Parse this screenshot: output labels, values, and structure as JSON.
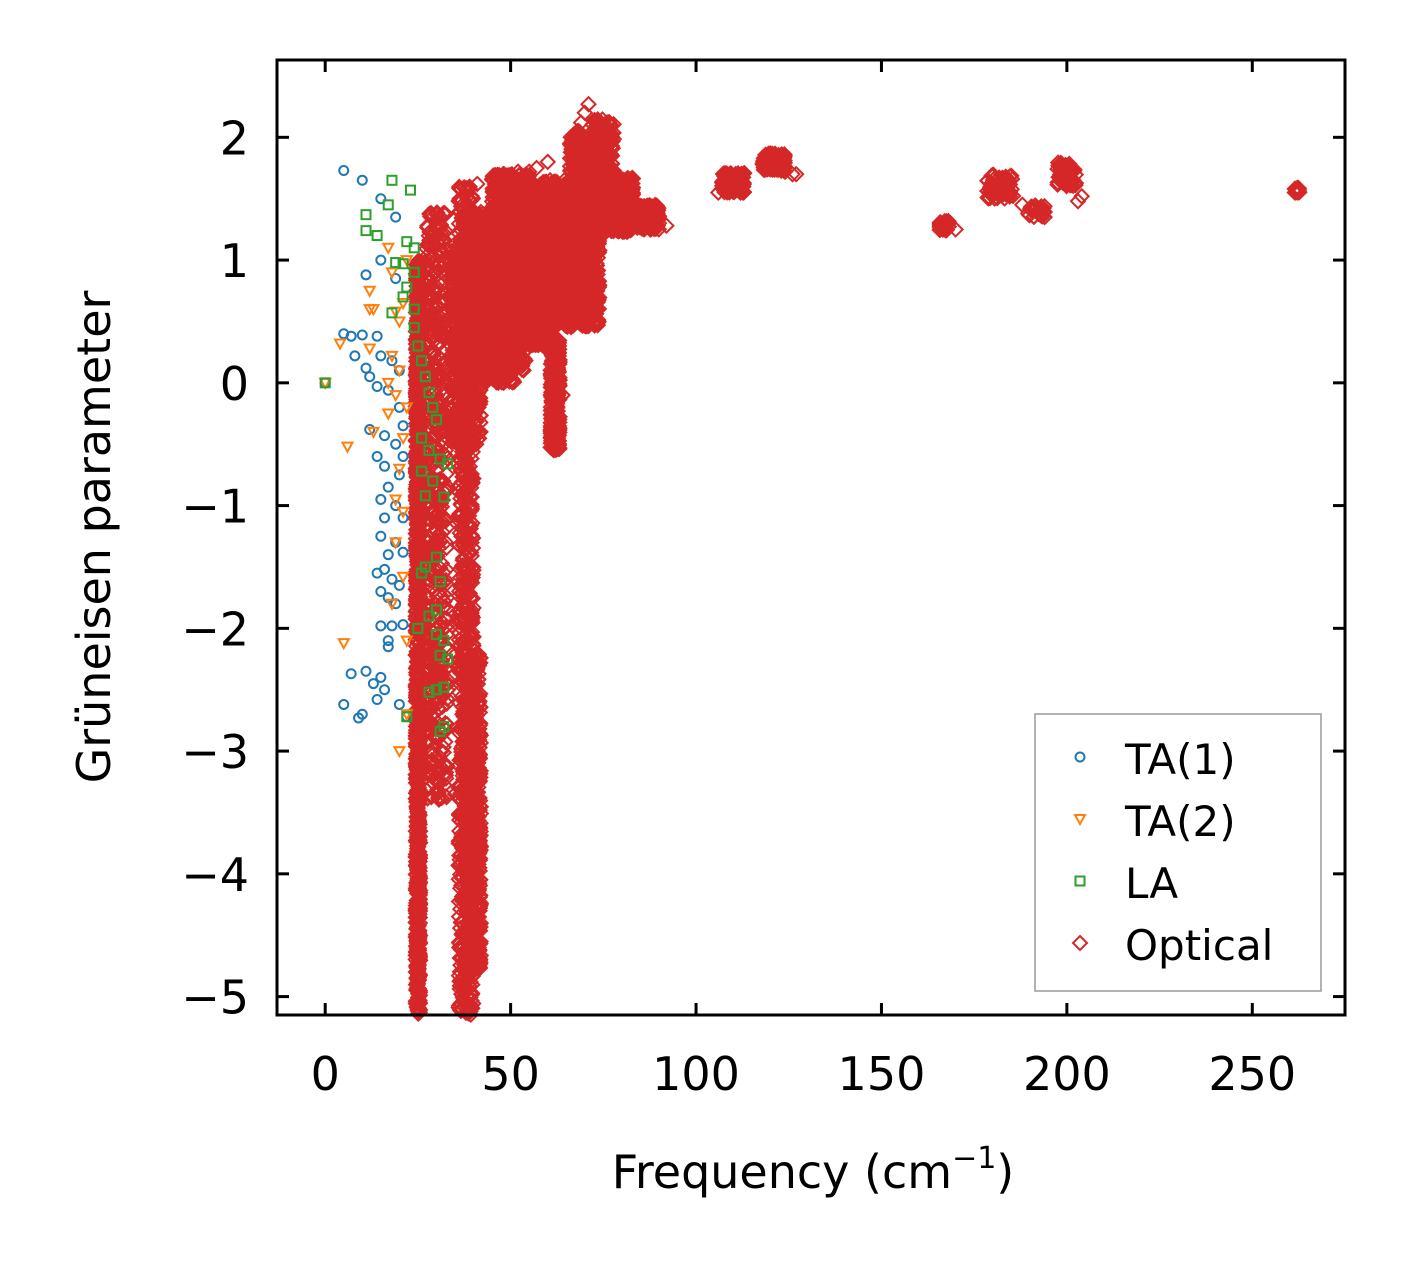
{
  "chart_data": {
    "type": "scatter",
    "title": "",
    "xlabel": "Frequency (cm",
    "xlabel_sup": "−1",
    "xlabel_close": ")",
    "ylabel": "Grüneisen parameter",
    "xlim": [
      -13,
      275
    ],
    "ylim": [
      -5.15,
      2.63
    ],
    "xticks": [
      0,
      50,
      100,
      150,
      200,
      250
    ],
    "xtick_labels": [
      "0",
      "50",
      "100",
      "150",
      "200",
      "250"
    ],
    "yticks": [
      2,
      1,
      0,
      -1,
      -2,
      -3,
      -4,
      -5
    ],
    "ytick_labels": [
      "2",
      "1",
      "0",
      "−1",
      "−2",
      "−3",
      "−4",
      "−5"
    ],
    "grid": false,
    "legend_position": "bottom-right",
    "series": [
      {
        "name": "TA(1)",
        "marker": "circle",
        "color": "#1f77b4",
        "points": [
          [
            0,
            0
          ],
          [
            5,
            1.73
          ],
          [
            10,
            1.65
          ],
          [
            15,
            1.5
          ],
          [
            19,
            1.35
          ],
          [
            15,
            1.0
          ],
          [
            11,
            0.88
          ],
          [
            19,
            0.85
          ],
          [
            5,
            0.4
          ],
          [
            7,
            0.38
          ],
          [
            10,
            0.39
          ],
          [
            14,
            0.38
          ],
          [
            8,
            0.22
          ],
          [
            11,
            0.12
          ],
          [
            15,
            0.22
          ],
          [
            18,
            0.18
          ],
          [
            12,
            0.05
          ],
          [
            20,
            0.1
          ],
          [
            14,
            -0.03
          ],
          [
            17,
            -0.06
          ],
          [
            20,
            -0.2
          ],
          [
            21,
            -0.35
          ],
          [
            12,
            -0.38
          ],
          [
            16,
            -0.43
          ],
          [
            19,
            -0.5
          ],
          [
            21,
            -0.6
          ],
          [
            14,
            -0.6
          ],
          [
            16,
            -0.68
          ],
          [
            20,
            -0.75
          ],
          [
            17,
            -0.85
          ],
          [
            15,
            -0.95
          ],
          [
            19,
            -1.0
          ],
          [
            21,
            -1.1
          ],
          [
            16,
            -1.1
          ],
          [
            15,
            -1.25
          ],
          [
            19,
            -1.3
          ],
          [
            21,
            -1.38
          ],
          [
            17,
            -1.4
          ],
          [
            16,
            -1.52
          ],
          [
            14,
            -1.55
          ],
          [
            18,
            -1.6
          ],
          [
            20,
            -1.65
          ],
          [
            15,
            -1.7
          ],
          [
            17,
            -1.75
          ],
          [
            19,
            -1.8
          ],
          [
            15,
            -1.98
          ],
          [
            18,
            -1.98
          ],
          [
            21,
            -1.97
          ],
          [
            17,
            -2.1
          ],
          [
            17,
            -2.15
          ],
          [
            11,
            -2.35
          ],
          [
            7,
            -2.37
          ],
          [
            15,
            -2.4
          ],
          [
            13,
            -2.45
          ],
          [
            16,
            -2.5
          ],
          [
            14,
            -2.58
          ],
          [
            5,
            -2.62
          ],
          [
            10,
            -2.7
          ],
          [
            9,
            -2.73
          ],
          [
            20,
            -2.62
          ],
          [
            22,
            -2.72
          ]
        ]
      },
      {
        "name": "TA(2)",
        "marker": "triangle-down",
        "color": "#ff7f0e",
        "points": [
          [
            0,
            0
          ],
          [
            17,
            1.1
          ],
          [
            22,
            1.0
          ],
          [
            18,
            0.9
          ],
          [
            12,
            0.75
          ],
          [
            21,
            0.65
          ],
          [
            12,
            0.6
          ],
          [
            13,
            0.6
          ],
          [
            19,
            0.58
          ],
          [
            20,
            0.5
          ],
          [
            4,
            0.32
          ],
          [
            12,
            0.28
          ],
          [
            18,
            0.22
          ],
          [
            20,
            0.1
          ],
          [
            17,
            0.0
          ],
          [
            19,
            -0.1
          ],
          [
            22,
            -0.2
          ],
          [
            17,
            -0.25
          ],
          [
            13,
            -0.4
          ],
          [
            21,
            -0.45
          ],
          [
            6,
            -0.52
          ],
          [
            20,
            -0.7
          ],
          [
            19,
            -0.95
          ],
          [
            21,
            -1.05
          ],
          [
            19,
            -1.3
          ],
          [
            21,
            -1.58
          ],
          [
            18,
            -1.8
          ],
          [
            5,
            -2.12
          ],
          [
            22,
            -2.1
          ],
          [
            22,
            -2.7
          ],
          [
            20,
            -3.0
          ]
        ]
      },
      {
        "name": "LA",
        "marker": "square",
        "color": "#2ca02c",
        "points": [
          [
            0,
            0
          ],
          [
            18,
            1.65
          ],
          [
            23,
            1.57
          ],
          [
            17,
            1.45
          ],
          [
            11,
            1.37
          ],
          [
            11,
            1.24
          ],
          [
            14,
            1.2
          ],
          [
            22,
            1.15
          ],
          [
            24,
            1.1
          ],
          [
            19,
            0.98
          ],
          [
            21,
            0.97
          ],
          [
            24,
            0.9
          ],
          [
            22,
            0.78
          ],
          [
            21,
            0.7
          ],
          [
            24,
            0.6
          ],
          [
            18,
            0.57
          ],
          [
            24,
            0.45
          ],
          [
            25,
            0.3
          ],
          [
            26,
            0.18
          ],
          [
            27,
            0.05
          ],
          [
            28,
            -0.08
          ],
          [
            29,
            -0.2
          ],
          [
            30,
            -0.3
          ],
          [
            26,
            -0.45
          ],
          [
            28,
            -0.55
          ],
          [
            31,
            -0.62
          ],
          [
            33,
            -0.66
          ],
          [
            26,
            -0.72
          ],
          [
            29,
            -0.8
          ],
          [
            27,
            -0.92
          ],
          [
            32,
            -0.93
          ],
          [
            30,
            -1.42
          ],
          [
            27,
            -1.5
          ],
          [
            26,
            -1.55
          ],
          [
            31,
            -1.62
          ],
          [
            30,
            -1.85
          ],
          [
            28,
            -1.9
          ],
          [
            25,
            -2.0
          ],
          [
            30,
            -2.05
          ],
          [
            32,
            -2.1
          ],
          [
            31,
            -2.22
          ],
          [
            33,
            -2.25
          ],
          [
            32,
            -2.48
          ],
          [
            30,
            -2.5
          ],
          [
            28,
            -2.52
          ],
          [
            22,
            -2.72
          ],
          [
            32,
            -2.8
          ],
          [
            31,
            -2.84
          ]
        ]
      },
      {
        "name": "Optical",
        "marker": "diamond",
        "color": "#d62728",
        "clusters": [
          [
            [
              25,
              -2.9
            ],
            [
              0.6,
              3.9
            ],
            1400
          ],
          [
            [
              30,
              -1.0
            ],
            [
              3,
              2.4
            ],
            600
          ],
          [
            [
              38,
              -2.0
            ],
            [
              2,
              3.6
            ],
            900
          ],
          [
            [
              40,
              -3.5
            ],
            [
              2,
              1.3
            ],
            700
          ],
          [
            [
              38,
              0.3
            ],
            [
              4,
              0.8
            ],
            600
          ],
          [
            [
              45,
              0.7
            ],
            [
              6,
              0.7
            ],
            1100
          ],
          [
            [
              55,
              0.9
            ],
            [
              6,
              0.6
            ],
            1300
          ],
          [
            [
              50,
              1.35
            ],
            [
              5,
              0.35
            ],
            600
          ],
          [
            [
              62,
              1.05
            ],
            [
              5,
              0.6
            ],
            1000
          ],
          [
            [
              70,
              1.25
            ],
            [
              4,
              0.8
            ],
            700
          ],
          [
            [
              78,
              1.45
            ],
            [
              5,
              0.22
            ],
            600
          ],
          [
            [
              62,
              -0.1
            ],
            [
              1.2,
              0.45
            ],
            350
          ],
          [
            [
              48,
              0.35
            ],
            [
              6,
              0.25
            ],
            300
          ],
          [
            [
              75,
              1.8
            ],
            [
              3,
              0.35
            ],
            250
          ],
          [
            [
              87,
              1.35
            ],
            [
              3,
              0.1
            ],
            150
          ],
          [
            [
              110,
              1.63
            ],
            [
              3,
              0.08
            ],
            120
          ],
          [
            [
              121,
              1.8
            ],
            [
              3,
              0.07
            ],
            140
          ],
          [
            [
              167,
              1.28
            ],
            [
              1.3,
              0.04
            ],
            50
          ],
          [
            [
              182,
              1.6
            ],
            [
              3.5,
              0.1
            ],
            60
          ],
          [
            [
              192,
              1.4
            ],
            [
              2.5,
              0.05
            ],
            30
          ],
          [
            [
              200,
              1.7
            ],
            [
              2.5,
              0.1
            ],
            60
          ],
          [
            [
              262,
              1.57
            ],
            [
              0.7,
              0.02
            ],
            20
          ]
        ],
        "points": [
          [
            71,
            2.27
          ],
          [
            70,
            2.2
          ],
          [
            68,
            2.05
          ],
          [
            69,
            2.12
          ],
          [
            72,
            2.0
          ],
          [
            72,
            1.95
          ],
          [
            60,
            1.8
          ],
          [
            57,
            1.75
          ],
          [
            55,
            1.72
          ],
          [
            52,
            1.72
          ],
          [
            48,
            1.7
          ],
          [
            45,
            1.66
          ],
          [
            41,
            1.62
          ],
          [
            39,
            1.58
          ],
          [
            36,
            1.48
          ],
          [
            40,
            1.4
          ],
          [
            80,
            1.45
          ],
          [
            86,
            1.4
          ],
          [
            88,
            1.35
          ],
          [
            90,
            1.3
          ],
          [
            92,
            1.28
          ],
          [
            124,
            1.72
          ],
          [
            126,
            1.7
          ],
          [
            127,
            1.7
          ],
          [
            106,
            1.55
          ],
          [
            118,
            1.78
          ],
          [
            203,
            1.48
          ],
          [
            204,
            1.52
          ],
          [
            194,
            1.35
          ],
          [
            192,
            1.4
          ],
          [
            188,
            1.45
          ],
          [
            170,
            1.25
          ],
          [
            40,
            -4.82
          ],
          [
            40,
            -4.75
          ],
          [
            39,
            -4.55
          ],
          [
            39,
            -4.4
          ],
          [
            40,
            -4.3
          ],
          [
            38,
            -4.05
          ],
          [
            36,
            -3.3
          ],
          [
            35,
            -3.35
          ],
          [
            37,
            -2.7
          ],
          [
            28,
            -2.2
          ],
          [
            45,
            0.2
          ],
          [
            43,
            0.25
          ],
          [
            47,
            0.1
          ],
          [
            62,
            -0.4
          ],
          [
            62,
            -0.33
          ],
          [
            64,
            -0.1
          ],
          [
            58,
            0.55
          ],
          [
            61,
            0.3
          ],
          [
            54,
            0.45
          ],
          [
            49,
            0.5
          ]
        ]
      }
    ]
  }
}
